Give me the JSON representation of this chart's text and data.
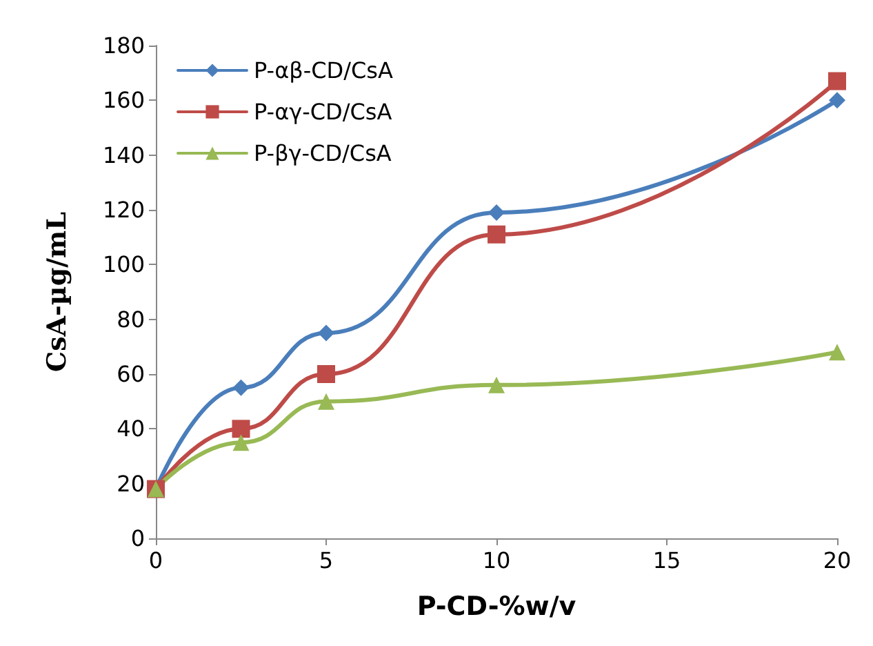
{
  "chart_data": {
    "type": "line",
    "xlabel": "P-CD-%w/v",
    "ylabel": "CsA-µg/mL",
    "x": [
      0,
      2.5,
      5,
      10,
      20
    ],
    "series": [
      {
        "name": "P-αβ-CD/CsA",
        "color": "#4a7ebb",
        "marker": "diamond",
        "values": [
          18,
          55,
          75,
          119,
          160
        ]
      },
      {
        "name": "P-αγ-CD/CsA",
        "color": "#be4b48",
        "marker": "square",
        "values": [
          18,
          40,
          60,
          111,
          167
        ]
      },
      {
        "name": "P-βγ-CD/CsA",
        "color": "#98b954",
        "marker": "triangle",
        "values": [
          18,
          35,
          50,
          56,
          68
        ]
      }
    ],
    "xlim": [
      0,
      20
    ],
    "xticks": [
      0,
      5,
      10,
      15,
      20
    ],
    "ylim": [
      0,
      180
    ],
    "yticks": [
      0,
      20,
      40,
      60,
      80,
      100,
      120,
      140,
      160,
      180
    ],
    "grid": false,
    "legend": "top left",
    "line_style": "solid"
  }
}
